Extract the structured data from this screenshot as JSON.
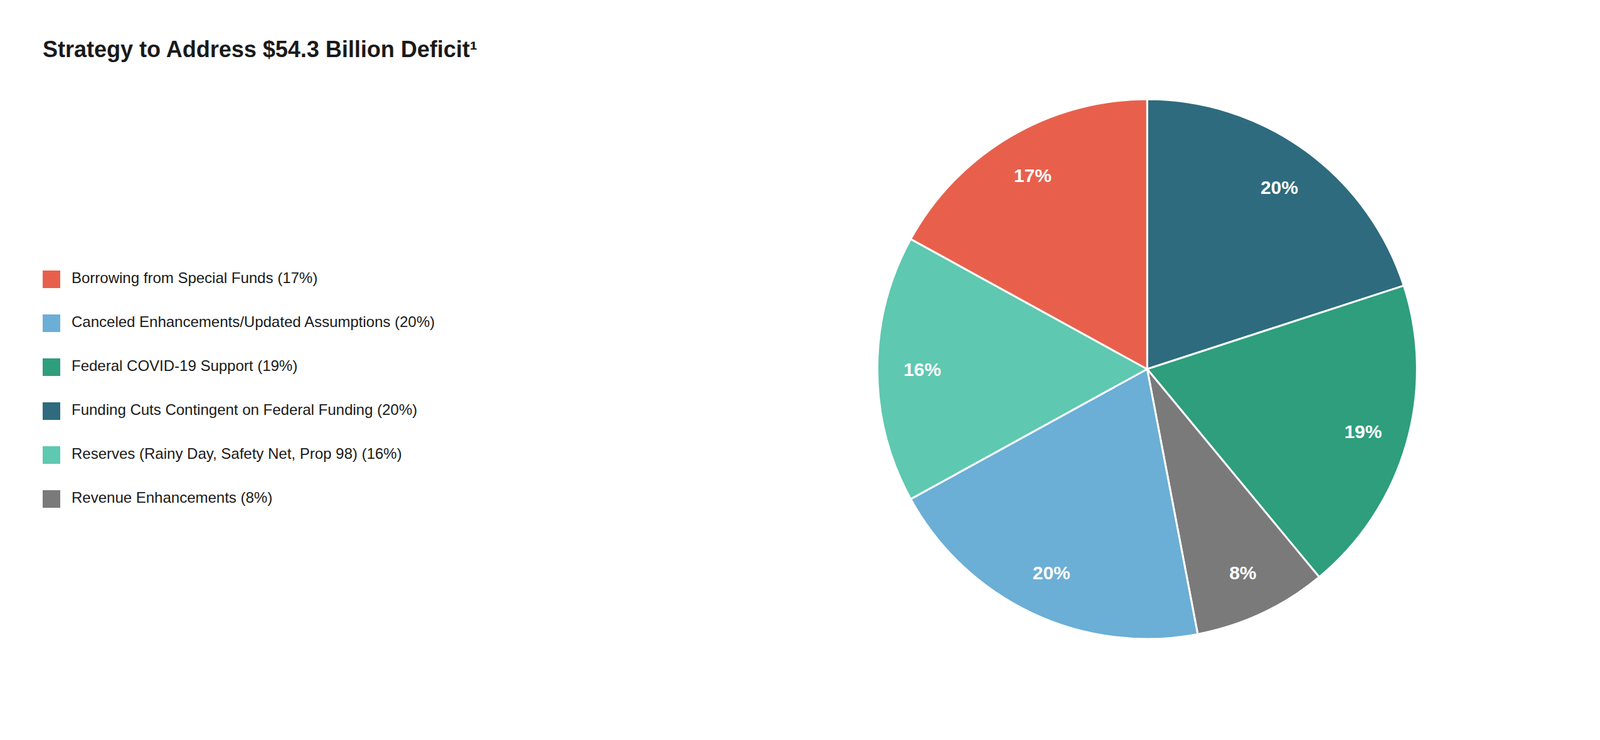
{
  "chart_data": {
    "type": "pie",
    "title": "Strategy to Address $54.3 Billion Deficit¹",
    "categories": [
      "Funding Cuts Contingent on Federal Funding (20%)",
      "Federal COVID-19 Support (19%)",
      "Revenue Enhancements (8%)",
      "Canceled Enhancements/Updated Assumptions (20%)",
      "Reserves (Rainy Day, Safety Net, Prop 98) (16%)",
      "Borrowing from Special Funds (17%)"
    ],
    "values": [
      20,
      19,
      8,
      20,
      16,
      17
    ],
    "value_labels": [
      "20%",
      "19%",
      "8%",
      "20%",
      "16%",
      "17%"
    ],
    "colors": [
      "#2e6b7e",
      "#2e9e7d",
      "#7a7a7a",
      "#6baed6",
      "#5ec8b0",
      "#e8604c"
    ],
    "data_labels": true,
    "legend": "left"
  }
}
